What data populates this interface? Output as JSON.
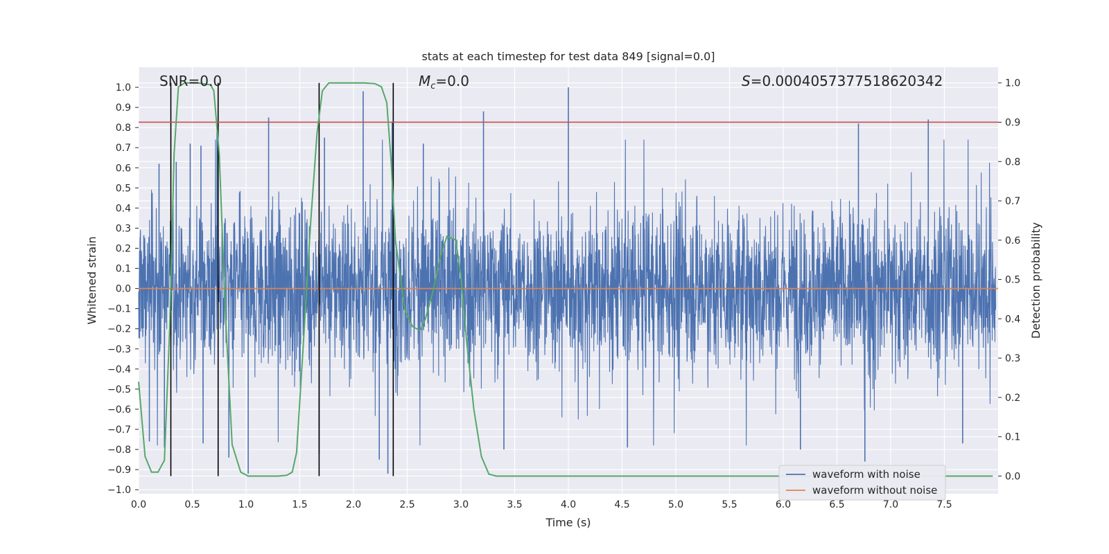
{
  "chart_data": {
    "type": "line",
    "title": "stats at each timestep for test data 849 [signal=0.0]",
    "xlabel": "Time (s)",
    "ylabel": "Whitened strain",
    "y2label": "Detection probability",
    "xlim": [
      0.0,
      8.0
    ],
    "ylim": [
      -1.02,
      1.1
    ],
    "y2lim": [
      -0.045,
      1.04
    ],
    "xticks": [
      "0.0",
      "0.5",
      "1.0",
      "1.5",
      "2.0",
      "2.5",
      "3.0",
      "3.5",
      "4.0",
      "4.5",
      "5.0",
      "5.5",
      "6.0",
      "6.5",
      "7.0",
      "7.5"
    ],
    "yticks": [
      "-1.0",
      "-0.9",
      "-0.8",
      "-0.7",
      "-0.6",
      "-0.5",
      "-0.4",
      "-0.3",
      "-0.2",
      "-0.1",
      "0.0",
      "0.1",
      "0.2",
      "0.3",
      "0.4",
      "0.5",
      "0.6",
      "0.7",
      "0.8",
      "0.9",
      "1.0"
    ],
    "y2ticks": [
      "0.0",
      "0.1",
      "0.2",
      "0.3",
      "0.4",
      "0.5",
      "0.6",
      "0.7",
      "0.8",
      "0.9",
      "1.0"
    ],
    "grid": true,
    "annotations": {
      "snr": "SNR=0.0",
      "mc_symbol": "M",
      "mc_sub": "c",
      "mc_value": "=0.0",
      "s_symbol": "S",
      "s_value": "=0.0004057377518620342"
    },
    "threshold_line": {
      "y2": 0.9,
      "color": "#c44e52"
    },
    "event_markers_x": [
      0.3,
      0.74,
      1.68,
      2.37
    ],
    "series": [
      {
        "name": "waveform with noise",
        "color": "#4c72b0",
        "style": "dense noise, approx ±0.35 std band, peaks to ±1.0",
        "peaks": [
          [
            0.19,
            0.62
          ],
          [
            0.35,
            0.63
          ],
          [
            0.48,
            0.72
          ],
          [
            0.58,
            0.71
          ],
          [
            0.73,
            0.78
          ],
          [
            1.21,
            0.85
          ],
          [
            1.73,
            0.75
          ],
          [
            2.09,
            0.98
          ],
          [
            2.36,
            0.83
          ],
          [
            2.65,
            0.72
          ],
          [
            3.21,
            0.88
          ],
          [
            4.0,
            1.0
          ],
          [
            6.7,
            0.82
          ],
          [
            7.35,
            0.84
          ]
        ],
        "troughs": [
          [
            0.1,
            -0.76
          ],
          [
            0.24,
            -0.79
          ],
          [
            0.6,
            -0.77
          ],
          [
            0.84,
            -0.84
          ],
          [
            1.02,
            -0.92
          ],
          [
            1.68,
            -0.82
          ],
          [
            2.24,
            -0.85
          ],
          [
            2.32,
            -0.92
          ],
          [
            3.4,
            -0.8
          ],
          [
            4.55,
            -0.79
          ],
          [
            6.16,
            -0.8
          ],
          [
            6.76,
            -0.86
          ],
          [
            7.67,
            -0.77
          ]
        ]
      },
      {
        "name": "waveform without noise",
        "color": "#dd8452",
        "y": 0.0
      },
      {
        "name": "detection probability",
        "color": "#55a868",
        "axis": "right",
        "x": [
          0.0,
          0.06,
          0.12,
          0.18,
          0.24,
          0.29,
          0.33,
          0.37,
          0.43,
          0.55,
          0.67,
          0.7,
          0.75,
          0.81,
          0.87,
          0.95,
          1.02,
          1.1,
          1.2,
          1.3,
          1.38,
          1.43,
          1.47,
          1.53,
          1.6,
          1.66,
          1.71,
          1.77,
          1.83,
          1.9,
          2.0,
          2.1,
          2.2,
          2.26,
          2.31,
          2.35,
          2.39,
          2.44,
          2.48,
          2.55,
          2.62,
          2.67,
          2.74,
          2.8,
          2.87,
          2.95,
          3.0,
          3.05,
          3.12,
          3.19,
          3.26,
          3.33,
          3.4,
          3.6,
          4.0,
          5.0,
          6.0,
          7.0,
          7.95
        ],
        "y": [
          0.24,
          0.05,
          0.01,
          0.01,
          0.04,
          0.38,
          0.82,
          0.99,
          1.0,
          1.0,
          0.995,
          0.98,
          0.82,
          0.4,
          0.08,
          0.01,
          0.0,
          0.0,
          0.0,
          0.0,
          0.002,
          0.01,
          0.06,
          0.32,
          0.64,
          0.87,
          0.98,
          1.0,
          1.0,
          1.0,
          1.0,
          1.0,
          0.998,
          0.99,
          0.95,
          0.8,
          0.6,
          0.5,
          0.42,
          0.38,
          0.37,
          0.4,
          0.47,
          0.55,
          0.61,
          0.6,
          0.51,
          0.35,
          0.17,
          0.05,
          0.005,
          0.0,
          0.0,
          0.0,
          0.0,
          0.0,
          0.0,
          0.0,
          0.0
        ]
      }
    ],
    "legend": [
      "waveform with noise",
      "waveform without noise"
    ],
    "legend_position": "lower-right"
  }
}
